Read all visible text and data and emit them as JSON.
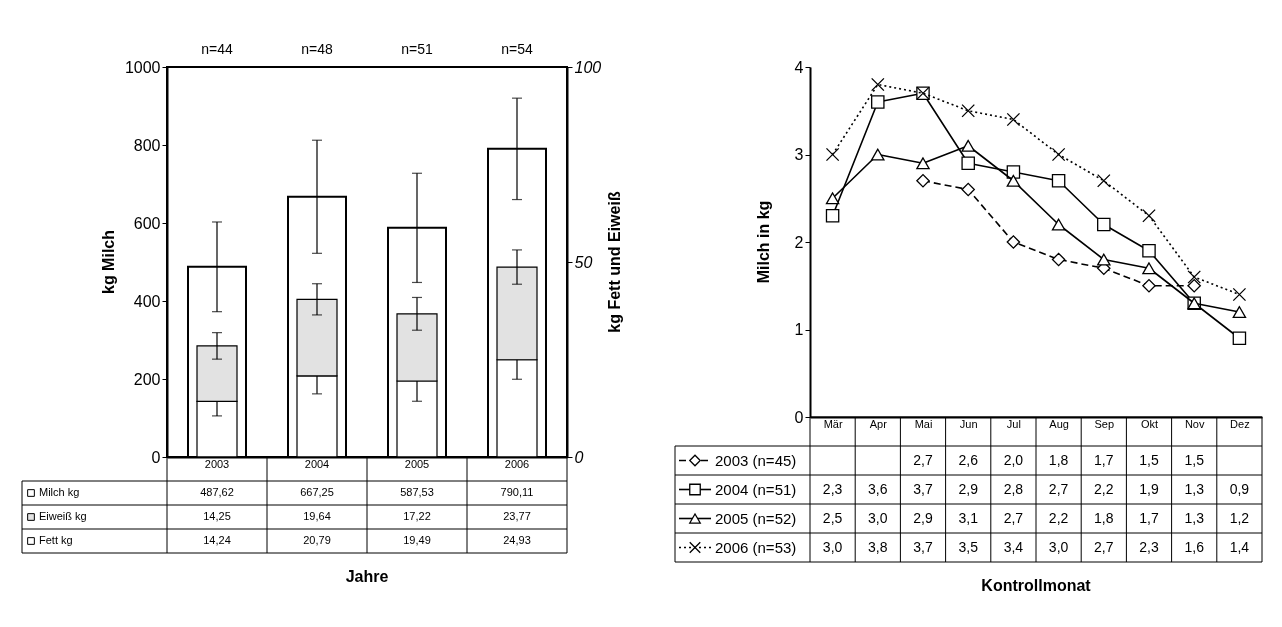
{
  "chart_data": [
    {
      "type": "bar",
      "categories": [
        "2003",
        "2004",
        "2005",
        "2006"
      ],
      "xlabel": "Jahre",
      "ylabel": "kg Milch",
      "y2label": "kg Fett und Eiweiß",
      "ylim": [
        0,
        1000
      ],
      "yticks": [
        0,
        200,
        400,
        600,
        800,
        1000
      ],
      "y2lim": [
        0,
        100
      ],
      "y2ticks": [
        0,
        50,
        100
      ],
      "stacked": true,
      "legend": "bottom",
      "series": [
        {
          "name": "Milch kg",
          "color": "#ffffff",
          "values": [
            487.62,
            667.25,
            587.53,
            790.11
          ],
          "errors": [
            115,
            145,
            140,
            130
          ],
          "value_labels": [
            "487,62",
            "667,25",
            "587,53",
            "790,11"
          ]
        },
        {
          "name": "Fett kg",
          "color": "#ffffff",
          "axis": "y2",
          "values": [
            14.24,
            20.79,
            19.49,
            24.93
          ],
          "errors": [
            3.7,
            4.6,
            5.2,
            5
          ],
          "value_labels": [
            "14,24",
            "20,79",
            "19,49",
            "24,93"
          ]
        },
        {
          "name": "Eiweiß kg",
          "color": "#e2e2e2",
          "axis": "y2",
          "values": [
            14.25,
            19.64,
            17.22,
            23.77
          ],
          "errors": [
            3.4,
            4,
            4.2,
            4.4
          ],
          "value_labels": [
            "14,25",
            "19,64",
            "17,22",
            "23,77"
          ]
        }
      ],
      "annotations": [
        "n=44",
        "n=48",
        "n=51",
        "n=54"
      ]
    },
    {
      "type": "line",
      "categories": [
        "Mär",
        "Apr",
        "Mai",
        "Jun",
        "Jul",
        "Aug",
        "Sep",
        "Okt",
        "Nov",
        "Dez"
      ],
      "xlabel": "Kontrollmonat",
      "ylabel": "Milch in kg",
      "ylim": [
        0,
        4
      ],
      "yticks": [
        0,
        1,
        2,
        3,
        4
      ],
      "legend": "bottom",
      "series": [
        {
          "name": "2003 (n=45)",
          "color": "#000000",
          "marker": "diamond",
          "line_style": "dashed",
          "values": [
            null,
            null,
            2.7,
            2.6,
            2.0,
            1.8,
            1.7,
            1.5,
            1.5,
            null
          ],
          "value_labels": [
            null,
            null,
            "2,7",
            "2,6",
            "2,0",
            "1,8",
            "1,7",
            "1,5",
            "1,5",
            null
          ]
        },
        {
          "name": "2004 (n=51)",
          "color": "#000000",
          "marker": "square",
          "line_style": "solid",
          "values": [
            2.3,
            3.6,
            3.7,
            2.9,
            2.8,
            2.7,
            2.2,
            1.9,
            1.3,
            0.9
          ],
          "value_labels": [
            "2,3",
            "3,6",
            "3,7",
            "2,9",
            "2,8",
            "2,7",
            "2,2",
            "1,9",
            "1,3",
            "0,9"
          ]
        },
        {
          "name": "2005 (n=52)",
          "color": "#000000",
          "marker": "triangle",
          "line_style": "solid",
          "values": [
            2.5,
            3.0,
            2.9,
            3.1,
            2.7,
            2.2,
            1.8,
            1.7,
            1.3,
            1.2
          ],
          "value_labels": [
            "2,5",
            "3,0",
            "2,9",
            "3,1",
            "2,7",
            "2,2",
            "1,8",
            "1,7",
            "1,3",
            "1,2"
          ]
        },
        {
          "name": "2006 (n=53)",
          "color": "#000000",
          "marker": "cross",
          "line_style": "dotted",
          "values": [
            3.0,
            3.8,
            3.7,
            3.5,
            3.4,
            3.0,
            2.7,
            2.3,
            1.6,
            1.4
          ],
          "value_labels": [
            "3,0",
            "3,8",
            "3,7",
            "3,5",
            "3,4",
            "3,0",
            "2,7",
            "2,3",
            "1,6",
            "1,4"
          ]
        }
      ]
    }
  ]
}
